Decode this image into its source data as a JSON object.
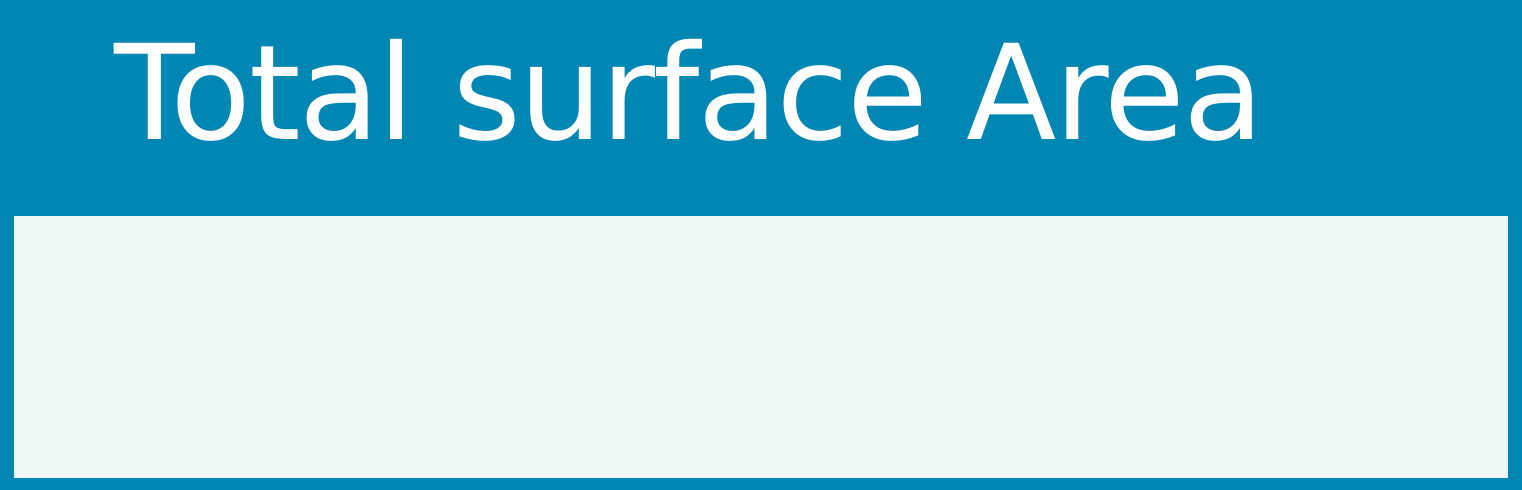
{
  "header": {
    "title": "Total surface Area"
  },
  "answer": {
    "value": ""
  },
  "colors": {
    "header_background": "#0086b3",
    "title_text": "#ffffff",
    "answer_background": "#eef7f6"
  }
}
